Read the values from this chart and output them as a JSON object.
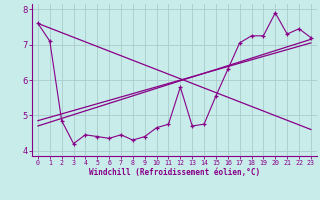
{
  "xlabel": "Windchill (Refroidissement éolien,°C)",
  "xlim": [
    -0.5,
    23.5
  ],
  "ylim": [
    3.85,
    8.15
  ],
  "yticks": [
    4,
    5,
    6,
    7,
    8
  ],
  "xticks": [
    0,
    1,
    2,
    3,
    4,
    5,
    6,
    7,
    8,
    9,
    10,
    11,
    12,
    13,
    14,
    15,
    16,
    17,
    18,
    19,
    20,
    21,
    22,
    23
  ],
  "bg_color": "#c8ecea",
  "line_color": "#880088",
  "grid_color": "#aacccc",
  "data_x": [
    0,
    1,
    2,
    3,
    4,
    5,
    6,
    7,
    8,
    9,
    10,
    11,
    12,
    13,
    14,
    15,
    16,
    17,
    18,
    19,
    20,
    21,
    22,
    23
  ],
  "data_y": [
    7.6,
    7.1,
    4.85,
    4.2,
    4.45,
    4.4,
    4.35,
    4.45,
    4.3,
    4.4,
    4.65,
    4.75,
    5.8,
    4.7,
    4.75,
    5.55,
    6.3,
    7.05,
    7.25,
    7.25,
    7.9,
    7.3,
    7.45,
    7.2
  ],
  "line1_x": [
    0,
    23
  ],
  "line1_y": [
    7.6,
    4.6
  ],
  "line2_x": [
    0,
    23
  ],
  "line2_y": [
    4.7,
    7.15
  ],
  "line3_x": [
    0,
    23
  ],
  "line3_y": [
    4.85,
    7.05
  ]
}
